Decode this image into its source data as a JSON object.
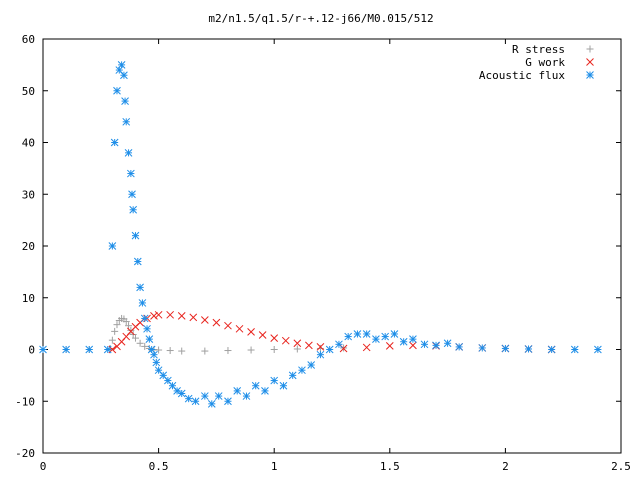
{
  "chart_data": {
    "type": "scatter",
    "title": "m2/n1.5/q1.5/r-+.12-j66/M0.015/512",
    "xlabel": "",
    "ylabel": "",
    "xlim": [
      0,
      2.5
    ],
    "ylim": [
      -20,
      60
    ],
    "x_ticks": [
      0,
      0.5,
      1,
      1.5,
      2,
      2.5
    ],
    "x_tick_labels": [
      "0",
      "0.5",
      "1",
      "1.5",
      "2",
      "2.5"
    ],
    "y_ticks": [
      -20,
      -10,
      0,
      10,
      20,
      30,
      40,
      50,
      60
    ],
    "y_tick_labels": [
      "-20",
      "-10",
      "0",
      "10",
      "20",
      "30",
      "40",
      "50",
      "60"
    ],
    "grid": false,
    "legend_position": "top-right",
    "series": [
      {
        "name": "R stress",
        "marker": "+",
        "color": "#a0a0a0",
        "x": [
          0.0,
          0.1,
          0.2,
          0.29,
          0.3,
          0.31,
          0.32,
          0.33,
          0.34,
          0.35,
          0.36,
          0.37,
          0.38,
          0.39,
          0.4,
          0.42,
          0.44,
          0.46,
          0.48,
          0.5,
          0.55,
          0.6,
          0.7,
          0.8,
          0.9,
          1.0,
          1.1,
          1.2,
          1.3
        ],
        "values": [
          0.0,
          0.0,
          0.0,
          0.2,
          1.8,
          3.5,
          4.8,
          5.6,
          6.0,
          5.9,
          5.4,
          4.6,
          3.7,
          2.9,
          2.2,
          1.2,
          0.6,
          0.2,
          0.0,
          -0.1,
          -0.2,
          -0.3,
          -0.3,
          -0.2,
          -0.1,
          0.0,
          0.1,
          0.2,
          0.3
        ]
      },
      {
        "name": "G work",
        "marker": "x",
        "color": "#e8231d",
        "x": [
          0.3,
          0.32,
          0.34,
          0.36,
          0.38,
          0.4,
          0.42,
          0.45,
          0.48,
          0.5,
          0.55,
          0.6,
          0.65,
          0.7,
          0.75,
          0.8,
          0.85,
          0.9,
          0.95,
          1.0,
          1.05,
          1.1,
          1.15,
          1.2,
          1.3,
          1.4,
          1.5,
          1.6,
          1.7,
          1.8,
          1.9,
          2.0,
          2.1,
          2.2
        ],
        "values": [
          0.0,
          0.6,
          1.5,
          2.5,
          3.5,
          4.4,
          5.2,
          6.0,
          6.5,
          6.7,
          6.7,
          6.5,
          6.2,
          5.7,
          5.2,
          4.6,
          4.0,
          3.4,
          2.8,
          2.2,
          1.7,
          1.2,
          0.8,
          0.5,
          0.2,
          0.4,
          0.7,
          0.8,
          0.7,
          0.5,
          0.3,
          0.2,
          0.1,
          0.0
        ]
      },
      {
        "name": "Acoustic flux",
        "marker": "*",
        "color": "#1e8ee8",
        "x": [
          0.0,
          0.1,
          0.2,
          0.28,
          0.3,
          0.31,
          0.32,
          0.33,
          0.34,
          0.35,
          0.355,
          0.36,
          0.37,
          0.38,
          0.385,
          0.39,
          0.4,
          0.41,
          0.42,
          0.43,
          0.44,
          0.45,
          0.46,
          0.47,
          0.48,
          0.49,
          0.5,
          0.52,
          0.54,
          0.56,
          0.58,
          0.6,
          0.63,
          0.66,
          0.7,
          0.73,
          0.76,
          0.8,
          0.84,
          0.88,
          0.92,
          0.96,
          1.0,
          1.04,
          1.08,
          1.12,
          1.16,
          1.2,
          1.24,
          1.28,
          1.32,
          1.36,
          1.4,
          1.44,
          1.48,
          1.52,
          1.56,
          1.6,
          1.65,
          1.7,
          1.75,
          1.8,
          1.9,
          2.0,
          2.1,
          2.2,
          2.3,
          2.4
        ],
        "values": [
          0.0,
          0.0,
          0.0,
          0.0,
          20.0,
          40.0,
          50.0,
          54.0,
          55.0,
          53.0,
          48.0,
          44.0,
          38.0,
          34.0,
          30.0,
          27.0,
          22.0,
          17.0,
          12.0,
          9.0,
          6.0,
          4.0,
          2.0,
          0.0,
          -1.0,
          -2.5,
          -4.0,
          -5.0,
          -6.0,
          -7.0,
          -8.0,
          -8.5,
          -9.5,
          -10.0,
          -9.0,
          -10.5,
          -9.0,
          -10.0,
          -8.0,
          -9.0,
          -7.0,
          -8.0,
          -6.0,
          -7.0,
          -5.0,
          -4.0,
          -3.0,
          -1.0,
          0.0,
          1.0,
          2.5,
          3.0,
          3.0,
          2.0,
          2.5,
          3.0,
          1.5,
          2.0,
          1.0,
          0.8,
          1.2,
          0.5,
          0.3,
          0.2,
          0.1,
          0.0,
          0.0,
          0.0
        ]
      }
    ]
  }
}
